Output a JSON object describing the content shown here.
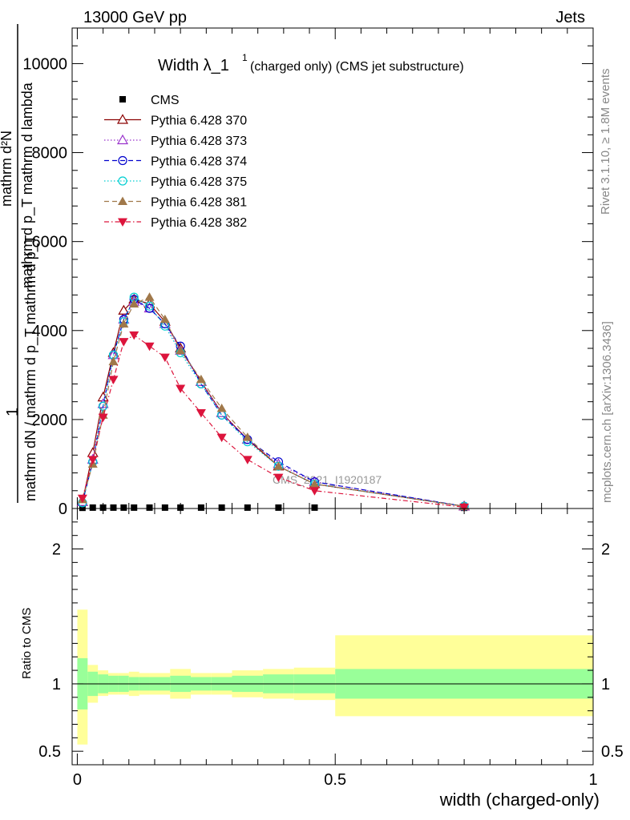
{
  "header": {
    "left": "13000 GeV pp",
    "right": "Jets"
  },
  "title": {
    "main": "Width λ_1",
    "superscript": "1",
    "sub": "(charged only) (CMS jet substructure)"
  },
  "side_text": {
    "top": "Rivet 3.1.10, ≥ 1.8M events",
    "bottom": "mcplots.cern.ch [arXiv:1306.3436]"
  },
  "watermark": "CMS_2021_I1920187",
  "ylabel_main": {
    "numerator": "mathrm d²N",
    "numerator_sub": "mathrm d p_T mathrm d lambda",
    "prefix": "1",
    "denominator": "mathrm dN / mathrm d p_T mathrm d p_T"
  },
  "ylabel_ratio": "Ratio to CMS",
  "xlabel": "width (charged-only)",
  "colors": {
    "band_inner": "#99ff99",
    "band_outer": "#ffff99"
  },
  "chart_data": [
    {
      "type": "line",
      "panel": "main",
      "xlim": [
        -0.01,
        1.0
      ],
      "ylim": [
        0,
        10800
      ],
      "yticks": [
        0,
        2000,
        4000,
        6000,
        8000,
        10000
      ],
      "ytick_labels": [
        "0",
        "2000",
        "4000",
        "6000",
        "8000",
        "10000"
      ],
      "legend_position": "top-left",
      "x": [
        0.01,
        0.03,
        0.05,
        0.07,
        0.09,
        0.11,
        0.14,
        0.17,
        0.2,
        0.24,
        0.28,
        0.33,
        0.39,
        0.46,
        0.75
      ],
      "series": [
        {
          "name": "CMS",
          "color": "#000000",
          "marker": "square",
          "line": "none",
          "values": [
            15,
            20,
            20,
            20,
            20,
            20,
            20,
            20,
            20,
            20,
            20,
            20,
            20,
            20,
            15
          ]
        },
        {
          "name": "Pythia 6.428 370",
          "color": "#8b0000",
          "marker": "triangle-open",
          "line": "solid",
          "values": [
            150,
            1250,
            2500,
            3500,
            4450,
            4700,
            4600,
            4200,
            3600,
            2850,
            2150,
            1550,
            950,
            550,
            50
          ]
        },
        {
          "name": "Pythia 6.428 373",
          "color": "#9932cc",
          "marker": "triangle-open",
          "line": "dotted",
          "values": [
            150,
            1100,
            2350,
            3450,
            4250,
            4650,
            4500,
            4150,
            3550,
            2850,
            2150,
            1550,
            1000,
            600,
            50
          ]
        },
        {
          "name": "Pythia 6.428 374",
          "color": "#0000cd",
          "marker": "circle-open",
          "line": "dashed",
          "values": [
            130,
            1050,
            2300,
            3450,
            4250,
            4700,
            4500,
            4150,
            3650,
            2800,
            2100,
            1550,
            1050,
            600,
            50
          ]
        },
        {
          "name": "Pythia 6.428 375",
          "color": "#00ced1",
          "marker": "circle-open",
          "line": "dotted",
          "values": [
            130,
            1050,
            2300,
            3450,
            4200,
            4750,
            4550,
            4100,
            3500,
            2800,
            2100,
            1500,
            950,
            550,
            50
          ]
        },
        {
          "name": "Pythia 6.428 381",
          "color": "#a0784a",
          "marker": "triangle-filled",
          "line": "dashed",
          "values": [
            200,
            1000,
            2100,
            3300,
            4150,
            4600,
            4750,
            4250,
            3550,
            2900,
            2250,
            1600,
            950,
            550,
            50
          ]
        },
        {
          "name": "Pythia 6.428 382",
          "color": "#dc143c",
          "marker": "triangle-down-filled",
          "line": "dashdot",
          "values": [
            230,
            1100,
            2050,
            2900,
            3750,
            3900,
            3650,
            3400,
            2700,
            2150,
            1600,
            1100,
            700,
            400,
            30
          ]
        }
      ]
    },
    {
      "type": "area",
      "panel": "ratio",
      "xlim": [
        -0.01,
        1.0
      ],
      "ylim": [
        0.4,
        2.3
      ],
      "yticks": [
        0.5,
        1,
        2
      ],
      "ytick_labels": [
        "0.5",
        "1",
        "2"
      ],
      "xticks": [
        0,
        0.5,
        1
      ],
      "xtick_labels": [
        "0",
        "0.5",
        "1"
      ],
      "reference_line": 1,
      "bin_edges": [
        0,
        0.02,
        0.04,
        0.06,
        0.08,
        0.1,
        0.12,
        0.14,
        0.18,
        0.22,
        0.26,
        0.3,
        0.36,
        0.42,
        0.5,
        1.0
      ],
      "inner_band": {
        "low": [
          0.81,
          0.91,
          0.93,
          0.94,
          0.94,
          0.95,
          0.95,
          0.95,
          0.94,
          0.95,
          0.95,
          0.94,
          0.93,
          0.93,
          0.89
        ],
        "high": [
          1.19,
          1.09,
          1.07,
          1.06,
          1.06,
          1.05,
          1.05,
          1.05,
          1.06,
          1.05,
          1.05,
          1.06,
          1.07,
          1.07,
          1.11
        ]
      },
      "outer_band": {
        "low": [
          0.55,
          0.86,
          0.91,
          0.92,
          0.92,
          0.91,
          0.92,
          0.92,
          0.89,
          0.92,
          0.92,
          0.9,
          0.89,
          0.88,
          0.76
        ],
        "high": [
          1.55,
          1.14,
          1.1,
          1.08,
          1.08,
          1.09,
          1.08,
          1.08,
          1.11,
          1.08,
          1.08,
          1.1,
          1.11,
          1.12,
          1.36
        ]
      }
    }
  ]
}
